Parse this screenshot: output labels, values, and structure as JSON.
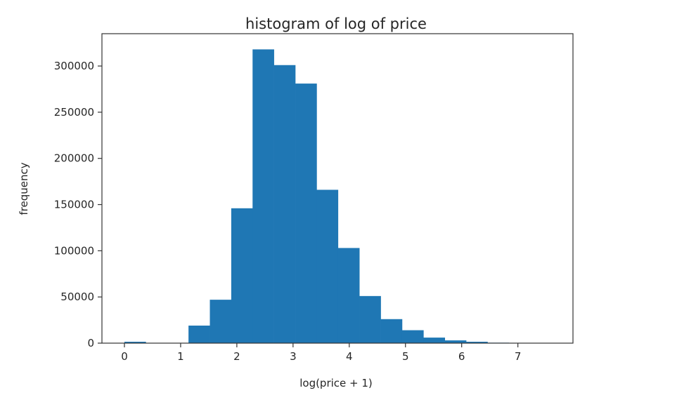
{
  "chart_data": {
    "type": "bar",
    "title": "histogram of log of price",
    "xlabel": "log(price + 1)",
    "ylabel": "frequency",
    "xlim": [
      -0.4,
      7.98
    ],
    "ylim": [
      0,
      335000
    ],
    "x_ticks": [
      0,
      1,
      2,
      3,
      4,
      5,
      6,
      7
    ],
    "x_tick_labels": [
      "0",
      "1",
      "2",
      "3",
      "4",
      "5",
      "6",
      "7"
    ],
    "y_ticks": [
      0,
      50000,
      100000,
      150000,
      200000,
      250000,
      300000
    ],
    "y_tick_labels": [
      "0",
      "50000",
      "100000",
      "150000",
      "200000",
      "250000",
      "300000"
    ],
    "bin_edges": [
      0.0,
      0.38,
      0.76,
      1.14,
      1.52,
      1.9,
      2.28,
      2.66,
      3.04,
      3.42,
      3.8,
      4.18,
      4.56,
      4.94,
      5.32,
      5.7,
      6.08,
      6.46,
      6.84,
      7.22,
      7.6
    ],
    "values": [
      1500,
      0,
      0,
      19000,
      47000,
      146000,
      318000,
      301000,
      281000,
      166000,
      103000,
      51000,
      26000,
      14000,
      6000,
      3000,
      1500,
      500,
      200,
      100
    ],
    "bar_color": "#1f77b4",
    "grid": false,
    "legend": "none"
  }
}
